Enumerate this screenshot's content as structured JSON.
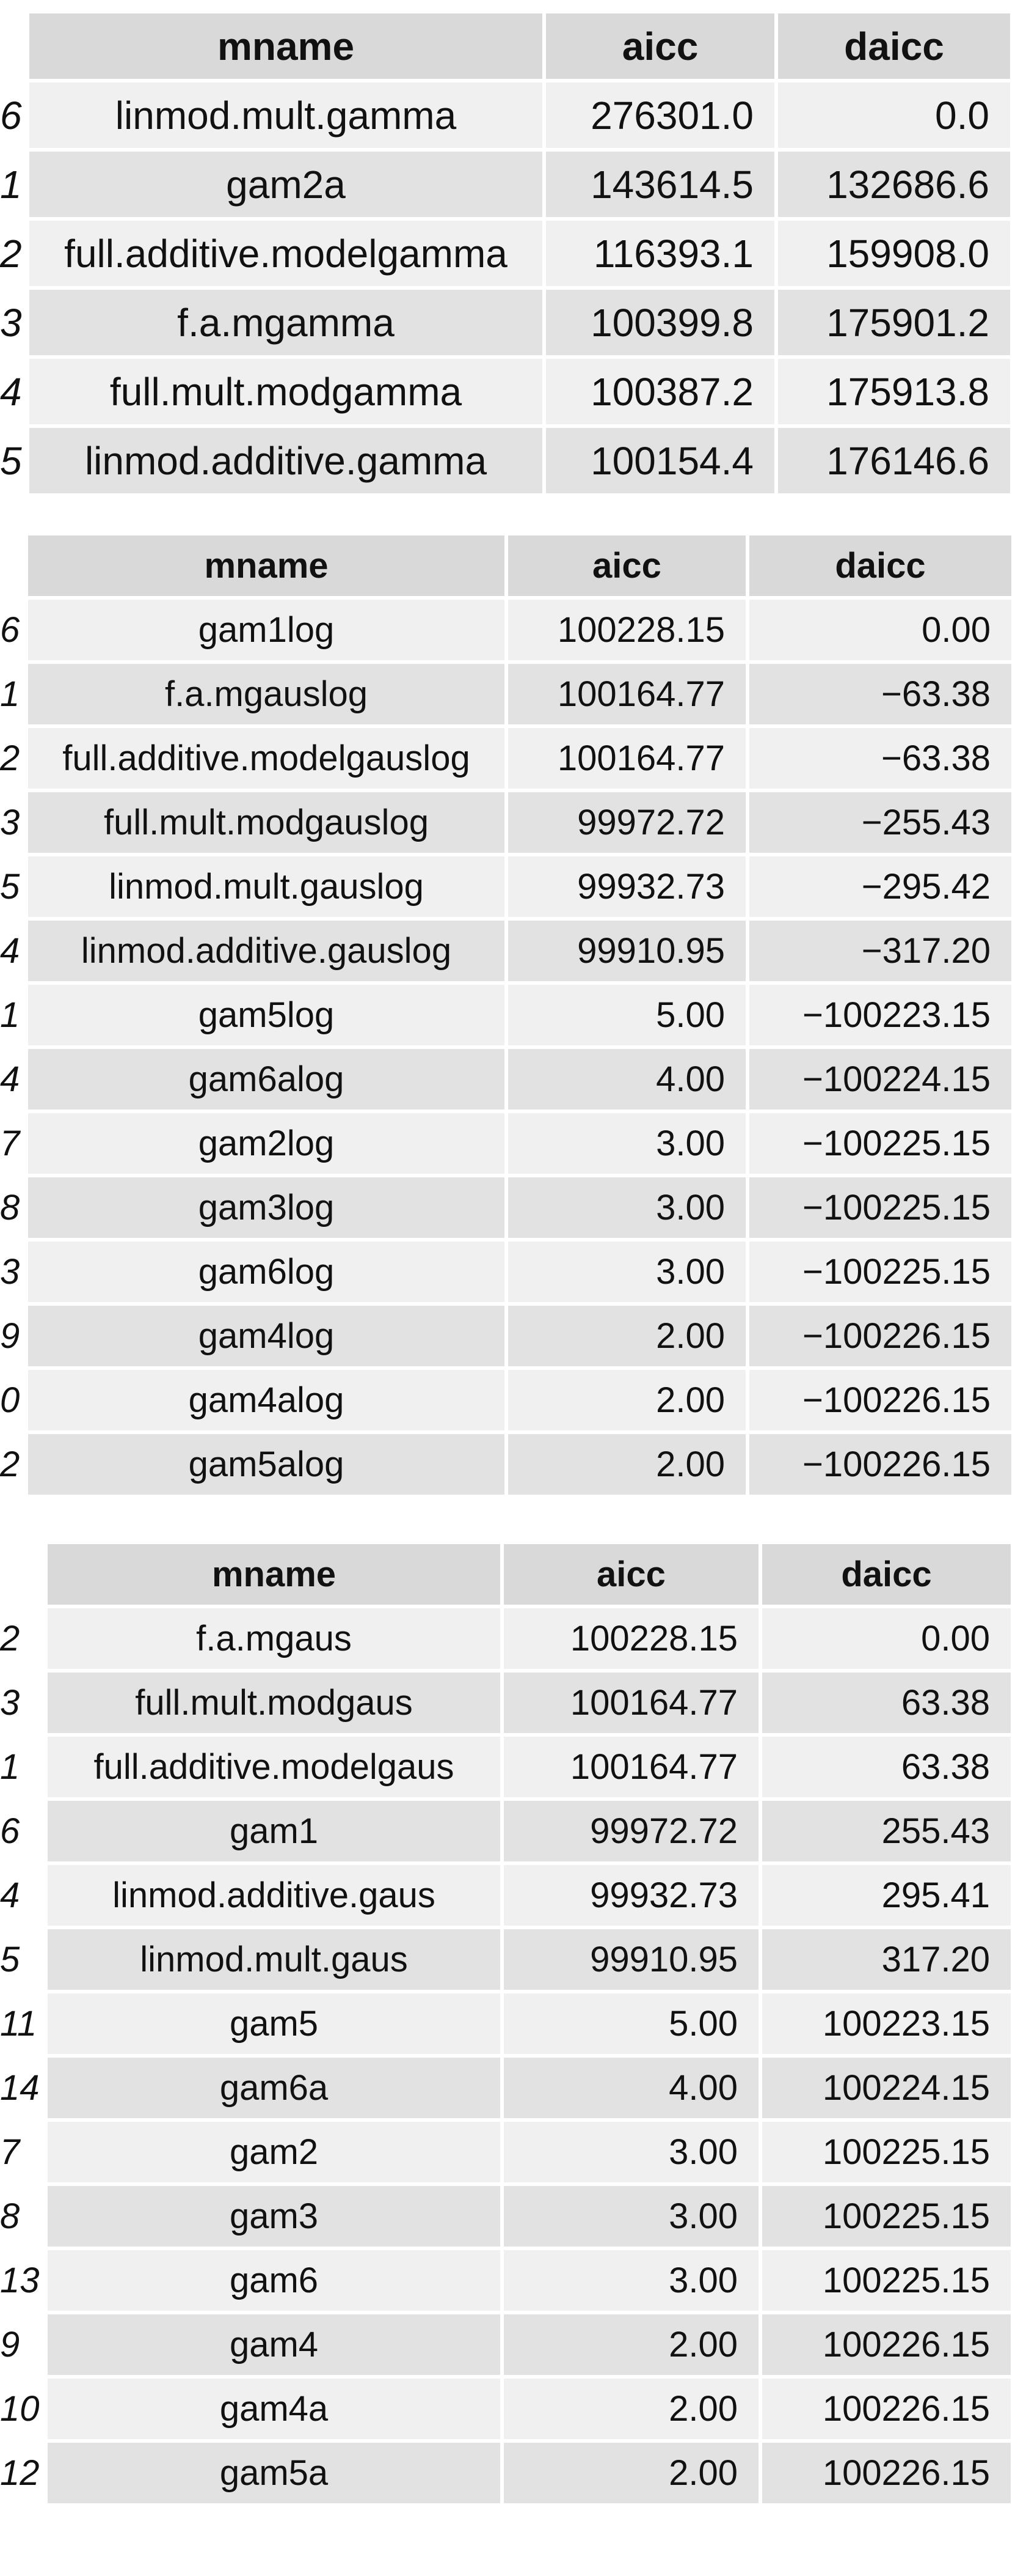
{
  "tables": [
    {
      "headers": [
        "mname",
        "aicc",
        "daicc"
      ],
      "rows": [
        {
          "idx": "6",
          "mname": "linmod.mult.gamma",
          "aicc": "276301.0",
          "daicc": "0.0"
        },
        {
          "idx": "1",
          "mname": "gam2a",
          "aicc": "143614.5",
          "daicc": "132686.6"
        },
        {
          "idx": "2",
          "mname": "full.additive.modelgamma",
          "aicc": "116393.1",
          "daicc": "159908.0"
        },
        {
          "idx": "3",
          "mname": "f.a.mgamma",
          "aicc": "100399.8",
          "daicc": "175901.2"
        },
        {
          "idx": "4",
          "mname": "full.mult.modgamma",
          "aicc": "100387.2",
          "daicc": "175913.8"
        },
        {
          "idx": "5",
          "mname": "linmod.additive.gamma",
          "aicc": "100154.4",
          "daicc": "176146.6"
        }
      ]
    },
    {
      "headers": [
        "mname",
        "aicc",
        "daicc"
      ],
      "rows": [
        {
          "idx": "6",
          "mname": "gam1log",
          "aicc": "100228.15",
          "daicc": "0.00"
        },
        {
          "idx": "1",
          "mname": "f.a.mgauslog",
          "aicc": "100164.77",
          "daicc": "−63.38"
        },
        {
          "idx": "2",
          "mname": "full.additive.modelgauslog",
          "aicc": "100164.77",
          "daicc": "−63.38"
        },
        {
          "idx": "3",
          "mname": "full.mult.modgauslog",
          "aicc": "99972.72",
          "daicc": "−255.43"
        },
        {
          "idx": "5",
          "mname": "linmod.mult.gauslog",
          "aicc": "99932.73",
          "daicc": "−295.42"
        },
        {
          "idx": "4",
          "mname": "linmod.additive.gauslog",
          "aicc": "99910.95",
          "daicc": "−317.20"
        },
        {
          "idx": "1",
          "mname": "gam5log",
          "aicc": "5.00",
          "daicc": "−100223.15"
        },
        {
          "idx": "4",
          "mname": "gam6alog",
          "aicc": "4.00",
          "daicc": "−100224.15"
        },
        {
          "idx": "7",
          "mname": "gam2log",
          "aicc": "3.00",
          "daicc": "−100225.15"
        },
        {
          "idx": "8",
          "mname": "gam3log",
          "aicc": "3.00",
          "daicc": "−100225.15"
        },
        {
          "idx": "3",
          "mname": "gam6log",
          "aicc": "3.00",
          "daicc": "−100225.15"
        },
        {
          "idx": "9",
          "mname": "gam4log",
          "aicc": "2.00",
          "daicc": "−100226.15"
        },
        {
          "idx": "0",
          "mname": "gam4alog",
          "aicc": "2.00",
          "daicc": "−100226.15"
        },
        {
          "idx": "2",
          "mname": "gam5alog",
          "aicc": "2.00",
          "daicc": "−100226.15"
        }
      ]
    },
    {
      "headers": [
        "mname",
        "aicc",
        "daicc"
      ],
      "rows": [
        {
          "idx": "2",
          "mname": "f.a.mgaus",
          "aicc": "100228.15",
          "daicc": "0.00"
        },
        {
          "idx": "3",
          "mname": "full.mult.modgaus",
          "aicc": "100164.77",
          "daicc": "63.38"
        },
        {
          "idx": "1",
          "mname": "full.additive.modelgaus",
          "aicc": "100164.77",
          "daicc": "63.38"
        },
        {
          "idx": "6",
          "mname": "gam1",
          "aicc": "99972.72",
          "daicc": "255.43"
        },
        {
          "idx": "4",
          "mname": "linmod.additive.gaus",
          "aicc": "99932.73",
          "daicc": "295.41"
        },
        {
          "idx": "5",
          "mname": "linmod.mult.gaus",
          "aicc": "99910.95",
          "daicc": "317.20"
        },
        {
          "idx": "11",
          "mname": "gam5",
          "aicc": "5.00",
          "daicc": "100223.15"
        },
        {
          "idx": "14",
          "mname": "gam6a",
          "aicc": "4.00",
          "daicc": "100224.15"
        },
        {
          "idx": "7",
          "mname": "gam2",
          "aicc": "3.00",
          "daicc": "100225.15"
        },
        {
          "idx": "8",
          "mname": "gam3",
          "aicc": "3.00",
          "daicc": "100225.15"
        },
        {
          "idx": "13",
          "mname": "gam6",
          "aicc": "3.00",
          "daicc": "100225.15"
        },
        {
          "idx": "9",
          "mname": "gam4",
          "aicc": "2.00",
          "daicc": "100226.15"
        },
        {
          "idx": "10",
          "mname": "gam4a",
          "aicc": "2.00",
          "daicc": "100226.15"
        },
        {
          "idx": "12",
          "mname": "gam5a",
          "aicc": "2.00",
          "daicc": "100226.15"
        }
      ]
    }
  ]
}
